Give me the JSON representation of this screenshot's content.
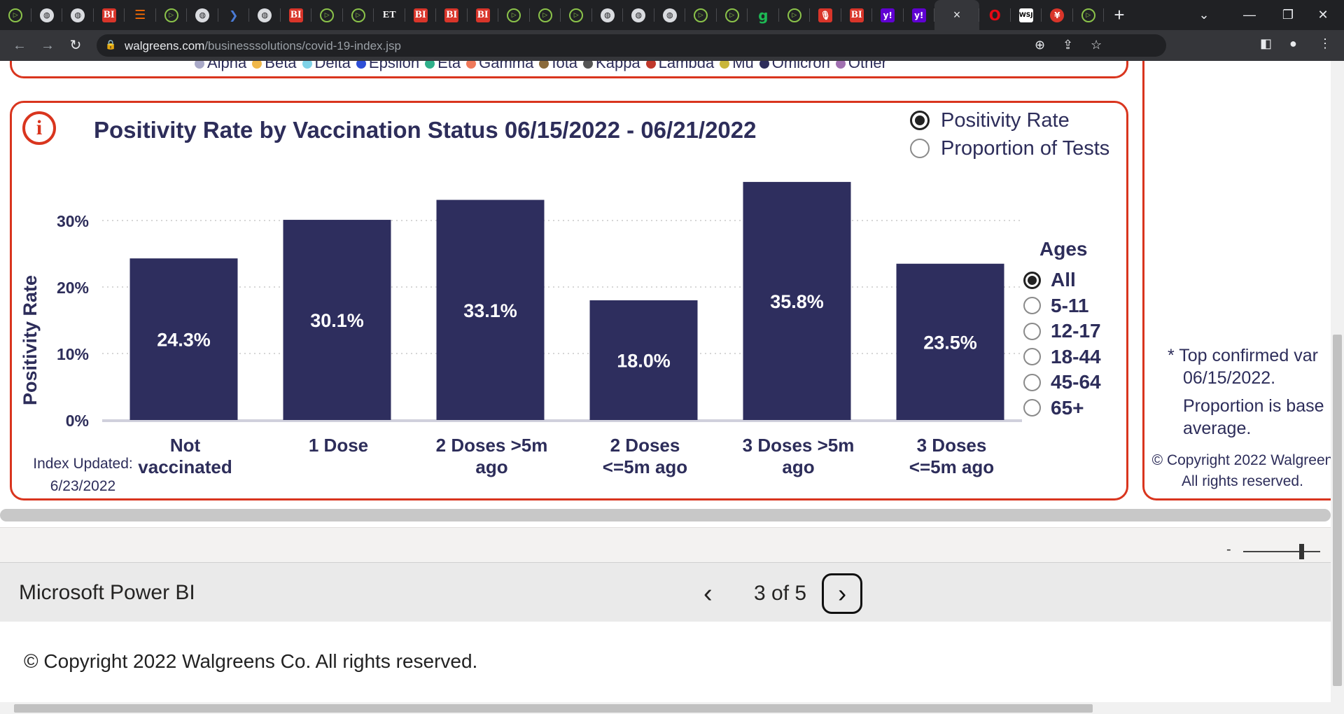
{
  "browser": {
    "tabs": [
      {
        "icon": "play-icon",
        "glyph": "▷",
        "style": "play"
      },
      {
        "icon": "globe-icon",
        "glyph": "◍",
        "style": "globe"
      },
      {
        "icon": "globe-icon",
        "glyph": "◍",
        "style": "globe"
      },
      {
        "icon": "business-insider-icon",
        "glyph": "BI",
        "style": "bi"
      },
      {
        "icon": "bookmark-icon",
        "glyph": "☰",
        "style": "book"
      },
      {
        "icon": "play-icon",
        "glyph": "▷",
        "style": "play"
      },
      {
        "icon": "globe-icon",
        "glyph": "◍",
        "style": "globe"
      },
      {
        "icon": "blue-arrow-icon",
        "glyph": "❯",
        "style": "blue"
      },
      {
        "icon": "globe-icon",
        "glyph": "◍",
        "style": "globe"
      },
      {
        "icon": "business-insider-icon",
        "glyph": "BI",
        "style": "bi"
      },
      {
        "icon": "play-icon",
        "glyph": "▷",
        "style": "play"
      },
      {
        "icon": "play-icon",
        "glyph": "▷",
        "style": "play"
      },
      {
        "icon": "economic-times-icon",
        "glyph": "ET",
        "style": "et"
      },
      {
        "icon": "business-insider-icon",
        "glyph": "BI",
        "style": "bi"
      },
      {
        "icon": "business-insider-icon",
        "glyph": "BI",
        "style": "bi"
      },
      {
        "icon": "business-insider-icon",
        "glyph": "BI",
        "style": "bi"
      },
      {
        "icon": "play-icon",
        "glyph": "▷",
        "style": "play"
      },
      {
        "icon": "play-icon",
        "glyph": "▷",
        "style": "play"
      },
      {
        "icon": "play-icon",
        "glyph": "▷",
        "style": "play"
      },
      {
        "icon": "globe-icon",
        "glyph": "◍",
        "style": "globe"
      },
      {
        "icon": "globe-icon",
        "glyph": "◍",
        "style": "globe"
      },
      {
        "icon": "globe-icon",
        "glyph": "◍",
        "style": "globe"
      },
      {
        "icon": "play-icon",
        "glyph": "▷",
        "style": "play"
      },
      {
        "icon": "play-icon",
        "glyph": "▷",
        "style": "play"
      },
      {
        "icon": "grammarly-icon",
        "glyph": "g",
        "style": "green"
      },
      {
        "icon": "play-icon",
        "glyph": "▷",
        "style": "play"
      },
      {
        "icon": "microphone-icon",
        "glyph": "🎙",
        "style": "mic"
      },
      {
        "icon": "business-insider-icon",
        "glyph": "BI",
        "style": "bi"
      },
      {
        "icon": "yahoo-icon",
        "glyph": "y!",
        "style": "yahoo"
      },
      {
        "icon": "yahoo-icon",
        "glyph": "y!",
        "style": "yahoo"
      }
    ],
    "active_tab_close": "×",
    "after_tabs": [
      {
        "icon": "opera-icon",
        "glyph": "O",
        "style": "opera"
      },
      {
        "icon": "wsj-icon",
        "glyph": "WSJ",
        "style": "wsj"
      },
      {
        "icon": "yen-icon",
        "glyph": "¥",
        "style": "yen"
      },
      {
        "icon": "play-icon",
        "glyph": "▷",
        "style": "play"
      }
    ],
    "new_tab": "+",
    "window_controls": {
      "dropdown": "⌄",
      "minimize": "—",
      "restore": "❐",
      "close": "✕"
    },
    "url_host": "walgreens.com",
    "url_path": "/businesssolutions/covid-19-index.jsp"
  },
  "legend_strip": [
    {
      "label": "Alpha",
      "color": "#a9a9c8"
    },
    {
      "label": "Beta",
      "color": "#f0b84a"
    },
    {
      "label": "Delta",
      "color": "#7fd3e8"
    },
    {
      "label": "Epsilon",
      "color": "#2e4fd6"
    },
    {
      "label": "Eta",
      "color": "#2fb08a"
    },
    {
      "label": "Gamma",
      "color": "#f07a5a"
    },
    {
      "label": "Iota",
      "color": "#8a6a3a"
    },
    {
      "label": "Kappa",
      "color": "#555555"
    },
    {
      "label": "Lambda",
      "color": "#c0392b"
    },
    {
      "label": "Mu",
      "color": "#c9b63a"
    },
    {
      "label": "Omicron",
      "color": "#2d2d5a"
    },
    {
      "label": "Other",
      "color": "#a070b0"
    }
  ],
  "controls": {
    "positivity_rate": "Positivity Rate",
    "proportion_of_tests": "Proportion of Tests",
    "ages_title": "Ages",
    "ages": [
      "All",
      "5-11",
      "12-17",
      "18-44",
      "45-64",
      "65+"
    ]
  },
  "index_updated": {
    "label": "Index Updated:",
    "date": "6/23/2022"
  },
  "side_panel": {
    "note_line1": "* Top confirmed var",
    "note_line2": "06/15/2022.",
    "note_line3": "Proportion is base",
    "note_line4": "average.",
    "copy_line1": "© Copyright 2022 Walgreen",
    "copy_line2": "All rights reserved."
  },
  "powerbi": {
    "name": "Microsoft Power BI",
    "prev": "‹",
    "page_label": "3 of 5",
    "next": "›"
  },
  "page_copyright": "© Copyright 2022 Walgreens Co. All rights reserved.",
  "chart_data": {
    "type": "bar",
    "title": "Positivity Rate by Vaccination Status 06/15/2022 - 06/21/2022",
    "ylabel": "Positivity Rate",
    "xlabel": "",
    "categories": [
      [
        "Not",
        "vaccinated"
      ],
      [
        "1 Dose"
      ],
      [
        "2 Doses >5m",
        "ago"
      ],
      [
        "2 Doses",
        "<=5m ago"
      ],
      [
        "3 Doses >5m",
        "ago"
      ],
      [
        "3 Doses",
        "<=5m ago"
      ]
    ],
    "values": [
      24.3,
      30.1,
      33.1,
      18.0,
      35.8,
      23.5
    ],
    "data_labels": [
      "24.3%",
      "30.1%",
      "33.1%",
      "18.0%",
      "35.8%",
      "23.5%"
    ],
    "yticks": [
      0,
      10,
      20,
      30
    ],
    "ytick_labels": [
      "0%",
      "10%",
      "20%",
      "30%"
    ],
    "ylim": [
      0,
      35.8
    ],
    "bar_color": "#2e2e5e",
    "grid": true
  }
}
